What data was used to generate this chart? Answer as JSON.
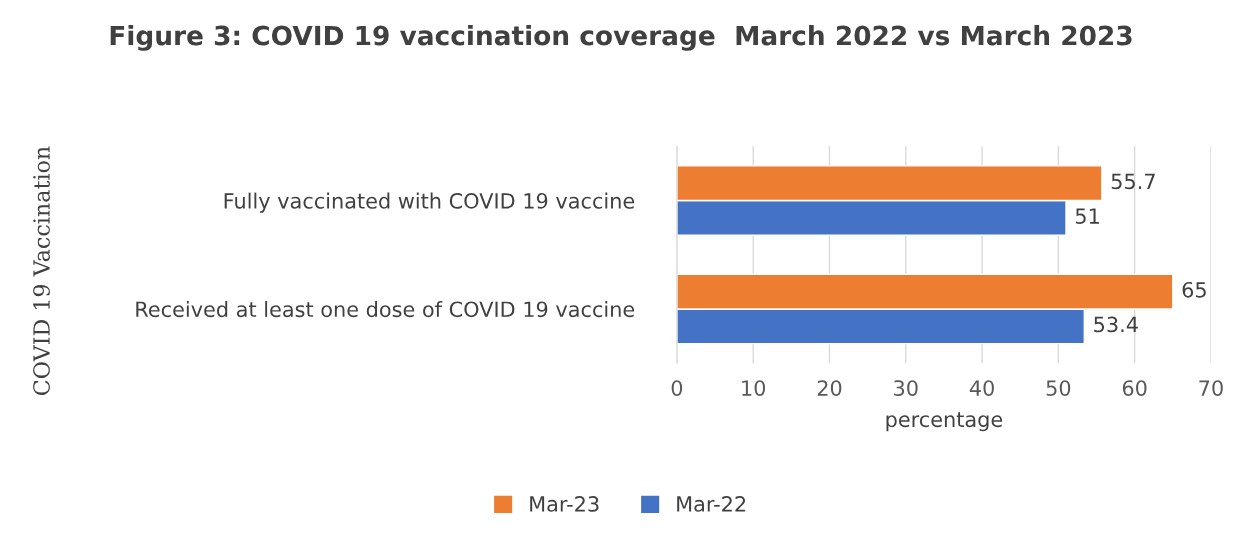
{
  "chart_data": {
    "type": "bar",
    "orientation": "horizontal",
    "title": "Figure 3: COVID 19 vaccination coverage  March 2022 vs March 2023",
    "xlabel": "percentage",
    "ylabel": "COVID 19 Vaccination",
    "categories": [
      "Fully vaccinated with COVID 19 vaccine",
      "Received at least one dose of COVID 19 vaccine"
    ],
    "series": [
      {
        "name": "Mar-22",
        "color": "#4472c4",
        "values": [
          51,
          53.4
        ]
      },
      {
        "name": "Mar-23",
        "color": "#ed7d31",
        "values": [
          55.7,
          65
        ]
      }
    ],
    "xlim": [
      0,
      70
    ],
    "xticks": [
      0,
      10,
      20,
      30,
      40,
      50,
      60,
      70
    ],
    "grid": "x",
    "legend": "bottom",
    "data_labels": true
  }
}
